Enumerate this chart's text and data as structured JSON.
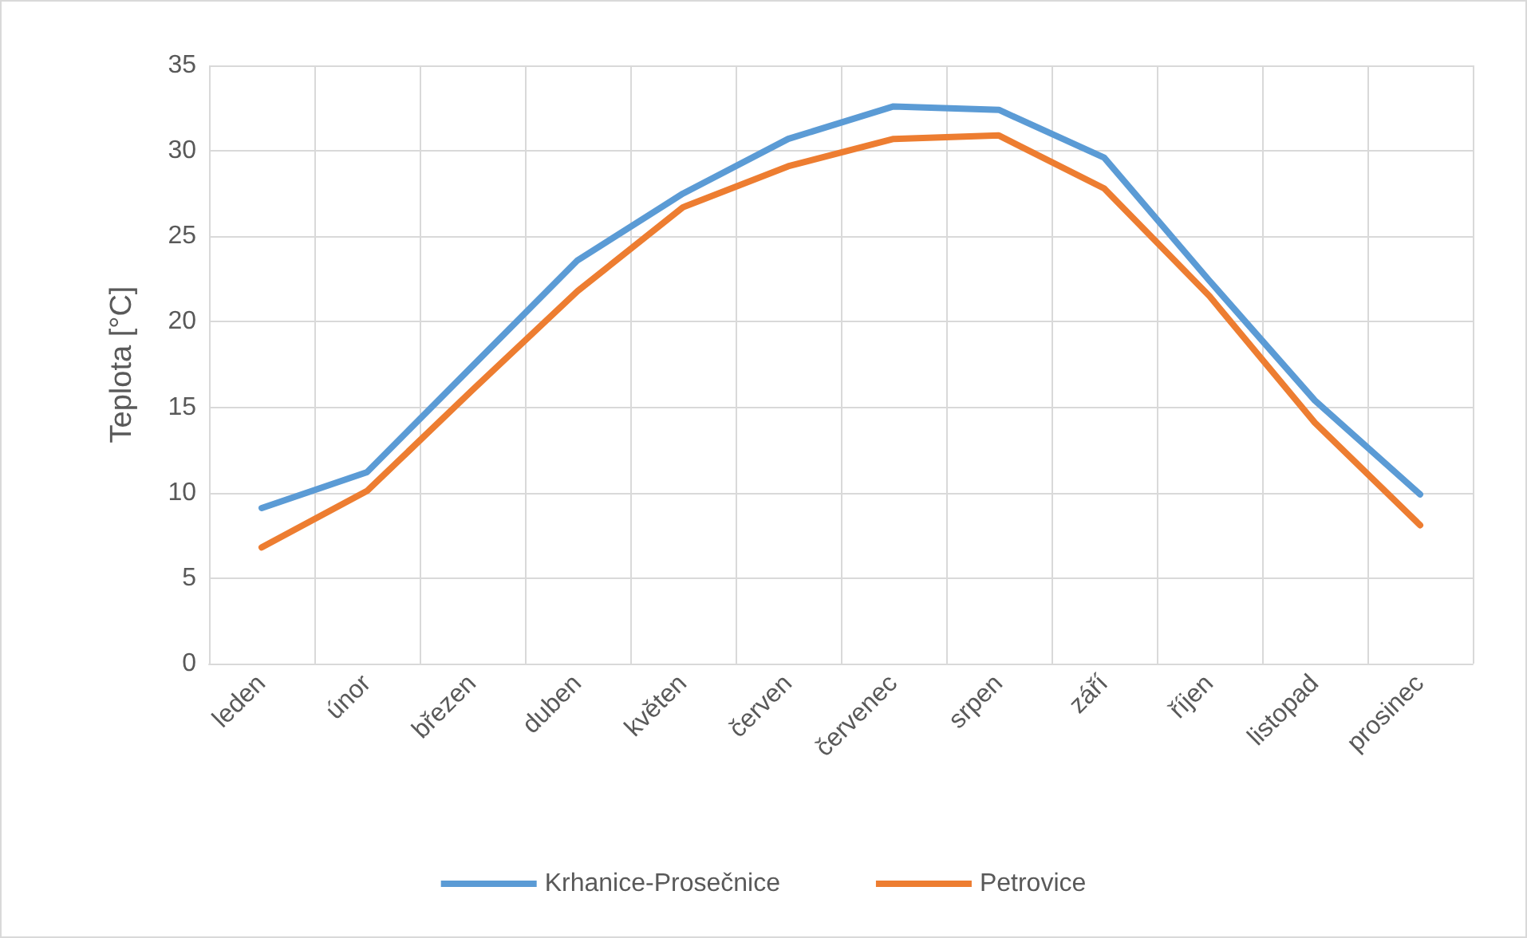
{
  "chart_data": {
    "type": "line",
    "ylabel": "Teplota [°C]",
    "categories": [
      "leden",
      "únor",
      "březen",
      "duben",
      "květen",
      "červen",
      "červenec",
      "srpen",
      "září",
      "říjen",
      "listopad",
      "prosinec"
    ],
    "series": [
      {
        "name": "Krhanice-Prosečnice",
        "color": "#5b9bd5",
        "values": [
          9.1,
          11.2,
          17.4,
          23.6,
          27.5,
          30.7,
          32.6,
          32.4,
          29.6,
          22.4,
          15.4,
          9.9
        ]
      },
      {
        "name": "Petrovice",
        "color": "#ed7d31",
        "values": [
          6.8,
          10.1,
          16.0,
          21.8,
          26.7,
          29.1,
          30.7,
          30.9,
          27.8,
          21.5,
          14.1,
          8.1
        ]
      }
    ],
    "ylim": [
      0,
      35
    ],
    "yticks": [
      0,
      5,
      10,
      15,
      20,
      25,
      30,
      35
    ],
    "grid": true,
    "legend": "bottom",
    "marker": "none",
    "line_style": "solid"
  }
}
